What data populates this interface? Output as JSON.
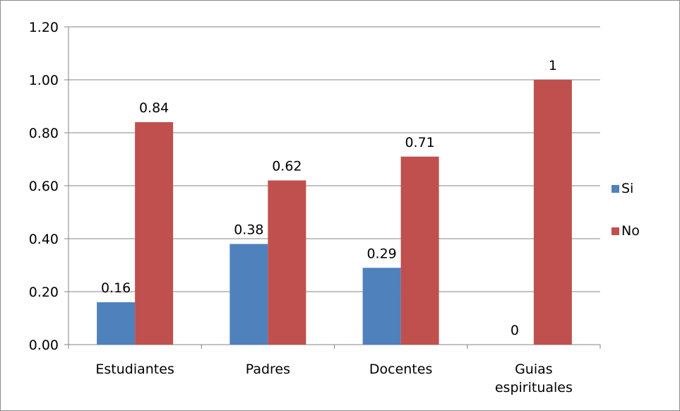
{
  "chart_data": {
    "type": "bar",
    "categories": [
      [
        "Estudiantes"
      ],
      [
        "Padres"
      ],
      [
        "Docentes"
      ],
      [
        "Guias",
        "espirituales"
      ]
    ],
    "series": [
      {
        "name": "Si",
        "color": "#4f81bd",
        "values": [
          0.16,
          0.38,
          0.29,
          0
        ],
        "labels": [
          "0.16",
          "0.38",
          "0.29",
          "0"
        ]
      },
      {
        "name": "No",
        "color": "#c0504d",
        "values": [
          0.84,
          0.62,
          0.71,
          1
        ],
        "labels": [
          "0.84",
          "0.62",
          "0.71",
          "1"
        ]
      }
    ],
    "yticks": [
      "0.00",
      "0.20",
      "0.40",
      "0.60",
      "0.80",
      "1.00",
      "1.20"
    ],
    "ylim": [
      0,
      1.2
    ],
    "grid": true,
    "legend_position": "right"
  }
}
